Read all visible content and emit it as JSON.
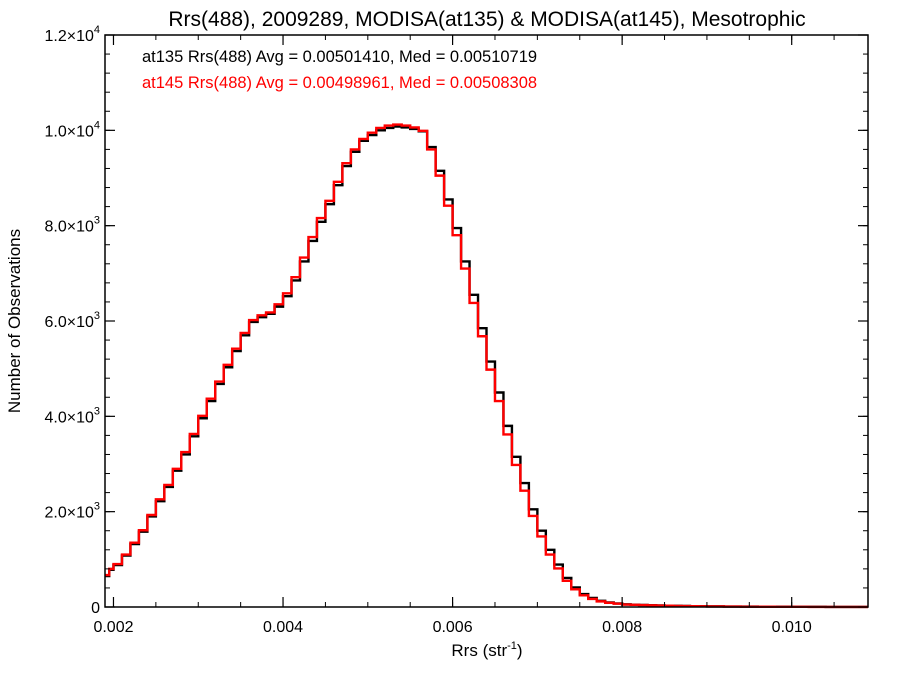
{
  "chart_data": {
    "type": "line",
    "title": "Rrs(488), 2009289, MODISA(at135) & MODISA(at145), Mesotrophic",
    "xlabel_text": "Rrs (str",
    "xlabel_sup": "-1",
    "xlabel_close": ")",
    "ylabel": "Number of Observations",
    "xlim": [
      0.0019,
      0.0109
    ],
    "ylim": [
      0,
      12000
    ],
    "x_ticks": [
      {
        "value": 0.002,
        "label": "0.002"
      },
      {
        "value": 0.004,
        "label": "0.004"
      },
      {
        "value": 0.006,
        "label": "0.006"
      },
      {
        "value": 0.008,
        "label": "0.008"
      },
      {
        "value": 0.01,
        "label": "0.010"
      }
    ],
    "y_ticks": [
      {
        "value": 0,
        "mant": "0",
        "exp": ""
      },
      {
        "value": 2000,
        "mant": "2.0×10",
        "exp": "3"
      },
      {
        "value": 4000,
        "mant": "4.0×10",
        "exp": "3"
      },
      {
        "value": 6000,
        "mant": "6.0×10",
        "exp": "3"
      },
      {
        "value": 8000,
        "mant": "8.0×10",
        "exp": "3"
      },
      {
        "value": 10000,
        "mant": "1.0×10",
        "exp": "4"
      },
      {
        "value": 12000,
        "mant": "1.2×10",
        "exp": "4"
      }
    ],
    "grid": false,
    "legend_position": "top-left",
    "series": [
      {
        "name": "at135 Rrs(488) Avg = 0.00501410, Med = 0.00510719",
        "color": "#000000",
        "x": [
          0.0019,
          0.00195,
          0.002,
          0.0021,
          0.0022,
          0.0023,
          0.0024,
          0.0025,
          0.0026,
          0.0027,
          0.0028,
          0.0029,
          0.003,
          0.0031,
          0.0032,
          0.0033,
          0.0034,
          0.0035,
          0.0036,
          0.0037,
          0.0038,
          0.0039,
          0.004,
          0.0041,
          0.0042,
          0.0043,
          0.0044,
          0.0045,
          0.0046,
          0.0047,
          0.0048,
          0.0049,
          0.005,
          0.0051,
          0.0052,
          0.0053,
          0.0054,
          0.0055,
          0.0056,
          0.0057,
          0.0058,
          0.0059,
          0.006,
          0.0061,
          0.0062,
          0.0063,
          0.0064,
          0.0065,
          0.0066,
          0.0067,
          0.0068,
          0.0069,
          0.007,
          0.0071,
          0.0072,
          0.0073,
          0.0074,
          0.0075,
          0.0076,
          0.0077,
          0.0078,
          0.0079,
          0.008,
          0.0081,
          0.0082,
          0.0083,
          0.0084,
          0.0085,
          0.0086,
          0.0087,
          0.0088,
          0.0089,
          0.009,
          0.0092,
          0.0094,
          0.0096,
          0.0098,
          0.01,
          0.0102,
          0.0104,
          0.0106,
          0.0108,
          0.0109
        ],
        "y": [
          650,
          780,
          880,
          1080,
          1320,
          1580,
          1900,
          2220,
          2520,
          2860,
          3200,
          3580,
          3960,
          4320,
          4680,
          5030,
          5370,
          5700,
          5980,
          6080,
          6150,
          6300,
          6520,
          6850,
          7250,
          7680,
          8080,
          8450,
          8850,
          9250,
          9550,
          9780,
          9900,
          10000,
          10050,
          10080,
          10060,
          10030,
          9980,
          9650,
          9150,
          8550,
          7950,
          7250,
          6550,
          5850,
          5150,
          4500,
          3800,
          3150,
          2600,
          2050,
          1600,
          1200,
          890,
          610,
          410,
          270,
          190,
          130,
          95,
          75,
          55,
          48,
          42,
          37,
          32,
          28,
          24,
          21,
          18,
          16,
          13,
          10,
          8,
          6,
          5,
          4,
          3,
          2,
          1,
          1,
          1
        ]
      },
      {
        "name": "at145 Rrs(488) Avg = 0.00498961, Med = 0.00508308",
        "color": "#ff0000",
        "x": [
          0.0019,
          0.00195,
          0.002,
          0.0021,
          0.0022,
          0.0023,
          0.0024,
          0.0025,
          0.0026,
          0.0027,
          0.0028,
          0.0029,
          0.003,
          0.0031,
          0.0032,
          0.0033,
          0.0034,
          0.0035,
          0.0036,
          0.0037,
          0.0038,
          0.0039,
          0.004,
          0.0041,
          0.0042,
          0.0043,
          0.0044,
          0.0045,
          0.0046,
          0.0047,
          0.0048,
          0.0049,
          0.005,
          0.0051,
          0.0052,
          0.0053,
          0.0054,
          0.0055,
          0.0056,
          0.0057,
          0.0058,
          0.0059,
          0.006,
          0.0061,
          0.0062,
          0.0063,
          0.0064,
          0.0065,
          0.0066,
          0.0067,
          0.0068,
          0.0069,
          0.007,
          0.0071,
          0.0072,
          0.0073,
          0.0074,
          0.0075,
          0.0076,
          0.0077,
          0.0078,
          0.0079,
          0.008,
          0.0081,
          0.0082,
          0.0083,
          0.0084,
          0.0085,
          0.0086,
          0.0087,
          0.0088,
          0.0089,
          0.009,
          0.0092,
          0.0094,
          0.0096,
          0.0098,
          0.01,
          0.0102,
          0.0104,
          0.0106,
          0.0108,
          0.0109
        ],
        "y": [
          670,
          800,
          900,
          1100,
          1350,
          1610,
          1930,
          2260,
          2560,
          2900,
          3250,
          3630,
          4010,
          4370,
          4730,
          5080,
          5420,
          5750,
          6020,
          6120,
          6180,
          6350,
          6580,
          6920,
          7330,
          7760,
          8160,
          8520,
          8920,
          9310,
          9600,
          9820,
          9950,
          10050,
          10100,
          10120,
          10100,
          10060,
          9990,
          9600,
          9050,
          8420,
          7800,
          7100,
          6380,
          5680,
          4980,
          4320,
          3620,
          2980,
          2440,
          1910,
          1480,
          1100,
          810,
          550,
          370,
          245,
          170,
          118,
          88,
          70,
          52,
          45,
          40,
          35,
          30,
          26,
          22,
          19,
          17,
          15,
          12,
          9,
          7,
          5,
          4,
          3,
          2,
          2,
          1,
          1,
          1
        ]
      }
    ]
  }
}
